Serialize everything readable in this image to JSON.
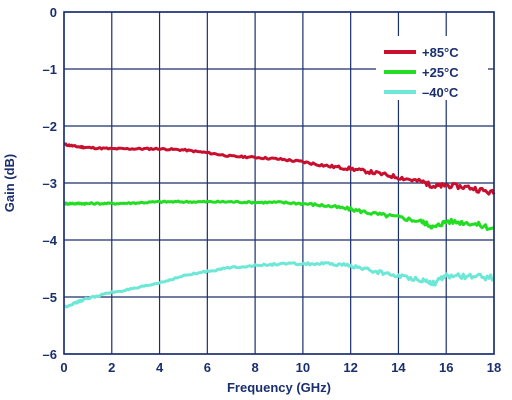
{
  "chart_data": {
    "type": "line",
    "title": "",
    "xlabel": "Frequency (GHz)",
    "ylabel": "Gain (dB)",
    "xlim": [
      0,
      18
    ],
    "ylim": [
      -6,
      0
    ],
    "x_ticks": [
      "0",
      "2",
      "4",
      "6",
      "8",
      "10",
      "12",
      "14",
      "16",
      "18"
    ],
    "y_ticks": [
      "0",
      "–1",
      "–2",
      "–3",
      "–4",
      "–5",
      "–6"
    ],
    "grid": true,
    "legend_position": "top-right",
    "x": [
      0,
      0.5,
      1,
      2,
      3,
      4,
      5,
      6,
      7,
      8,
      9,
      10,
      11,
      12,
      13,
      14,
      15,
      15.5,
      16,
      17,
      18
    ],
    "series": [
      {
        "name": "+85°C",
        "color": "#c8102e",
        "values": [
          -2.32,
          -2.36,
          -2.38,
          -2.4,
          -2.4,
          -2.4,
          -2.42,
          -2.47,
          -2.53,
          -2.55,
          -2.58,
          -2.63,
          -2.7,
          -2.75,
          -2.82,
          -2.9,
          -2.98,
          -3.06,
          -3.04,
          -3.08,
          -3.18
        ]
      },
      {
        "name": "+25°C",
        "color": "#22dd22",
        "values": [
          -3.36,
          -3.36,
          -3.36,
          -3.36,
          -3.35,
          -3.33,
          -3.33,
          -3.33,
          -3.33,
          -3.34,
          -3.34,
          -3.36,
          -3.4,
          -3.46,
          -3.54,
          -3.6,
          -3.68,
          -3.78,
          -3.67,
          -3.7,
          -3.8
        ]
      },
      {
        "name": "–40°C",
        "color": "#6ee8d6",
        "values": [
          -5.18,
          -5.1,
          -5.02,
          -4.92,
          -4.85,
          -4.75,
          -4.63,
          -4.55,
          -4.48,
          -4.45,
          -4.42,
          -4.42,
          -4.42,
          -4.45,
          -4.55,
          -4.63,
          -4.7,
          -4.76,
          -4.63,
          -4.64,
          -4.66
        ]
      }
    ]
  }
}
